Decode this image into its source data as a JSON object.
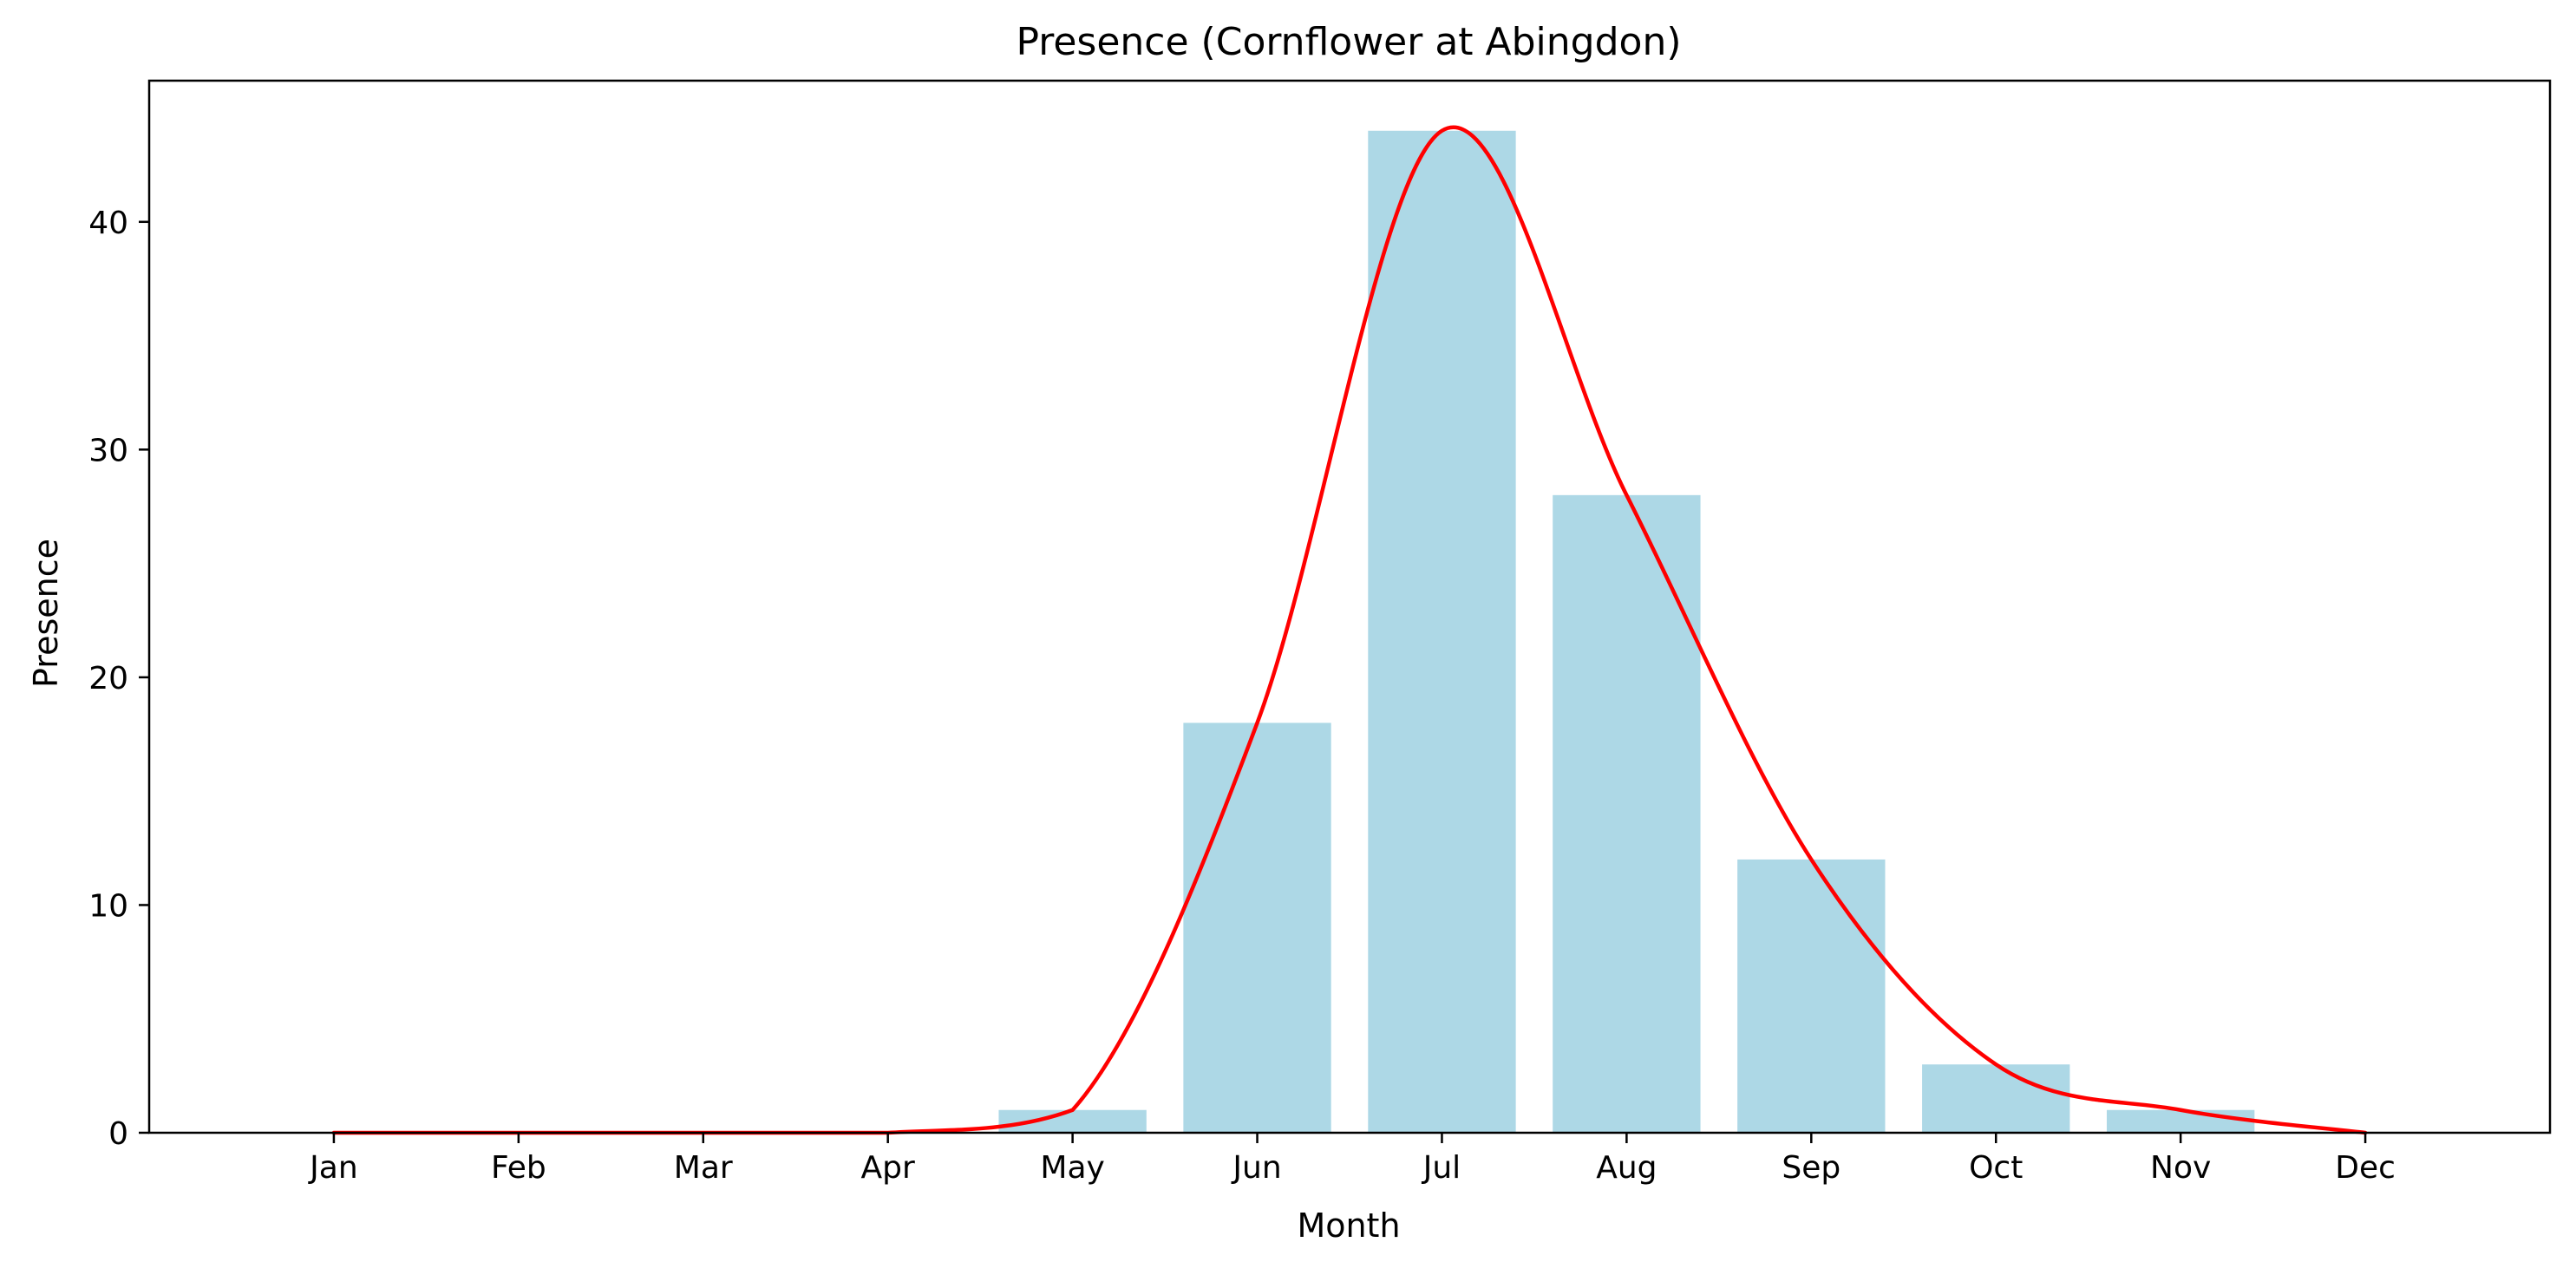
{
  "chart_data": {
    "type": "bar",
    "title": "Presence (Cornflower at Abingdon)",
    "xlabel": "Month",
    "ylabel": "Presence",
    "categories": [
      "Jan",
      "Feb",
      "Mar",
      "Apr",
      "May",
      "Jun",
      "Jul",
      "Aug",
      "Sep",
      "Oct",
      "Nov",
      "Dec"
    ],
    "series": [
      {
        "type": "bar",
        "values": [
          0,
          0,
          0,
          0,
          1,
          18,
          44,
          28,
          12,
          3,
          1,
          0
        ],
        "color": "#add8e6"
      },
      {
        "type": "line",
        "smooth": true,
        "values": [
          0,
          0,
          0,
          0,
          1,
          18,
          44,
          28,
          12,
          3,
          1,
          0
        ],
        "color": "#ff0000"
      }
    ],
    "y_ticks": [
      0,
      10,
      20,
      30,
      40
    ],
    "ylim": [
      0,
      46.2
    ],
    "xlim": [
      -1,
      12
    ],
    "grid": false,
    "legend": "none"
  }
}
